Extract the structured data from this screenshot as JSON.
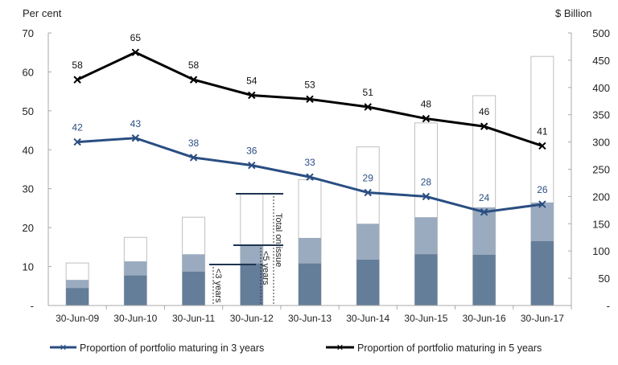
{
  "chart_data": {
    "type": "bar+line",
    "left_axis": {
      "label": "Per cent",
      "range": [
        0,
        70
      ],
      "ticks": [
        "-",
        "10",
        "20",
        "30",
        "40",
        "50",
        "60",
        "70"
      ]
    },
    "right_axis": {
      "label": "$ Billion",
      "range": [
        0,
        500
      ],
      "ticks": [
        "-",
        "50",
        "100",
        "150",
        "200",
        "250",
        "300",
        "350",
        "400",
        "450",
        "500"
      ]
    },
    "categories": [
      "30-Jun-09",
      "30-Jun-10",
      "30-Jun-11",
      "30-Jun-12",
      "30-Jun-13",
      "30-Jun-14",
      "30-Jun-15",
      "30-Jun-16",
      "30-Jun-17"
    ],
    "bars": {
      "axis": "right",
      "maturing_3y": [
        32,
        55,
        62,
        77,
        77,
        84,
        94,
        93,
        118
      ],
      "maturing_5y": [
        47,
        81,
        94,
        111,
        124,
        150,
        162,
        180,
        189
      ],
      "total_on_issue": [
        78,
        125,
        162,
        205,
        231,
        291,
        335,
        385,
        457
      ]
    },
    "series": [
      {
        "name": "Proportion of portfolio maturing in 3 years",
        "axis": "left",
        "values": [
          42,
          43,
          38,
          36,
          33,
          29,
          28,
          24,
          26
        ],
        "labels": [
          "42",
          "43",
          "38",
          "36",
          "33",
          "29",
          "28",
          "24",
          "26"
        ],
        "color": "#2a4e82"
      },
      {
        "name": "Proportion of portfolio maturing in 5 years",
        "axis": "left",
        "values": [
          58,
          65,
          58,
          54,
          53,
          51,
          48,
          46,
          41
        ],
        "labels": [
          "58",
          "65",
          "58",
          "54",
          "53",
          "51",
          "48",
          "46",
          "41"
        ],
        "color": "#000000"
      }
    ],
    "annotations": {
      "lt3": "<3 years",
      "lt5": "<5 years",
      "total": "Total on issue"
    },
    "colors": {
      "bar_3y": "#647d99",
      "bar_5y": "#9aabbf",
      "bar_total_border": "#bfbfbf"
    },
    "legend": "bottom",
    "grid": false
  }
}
